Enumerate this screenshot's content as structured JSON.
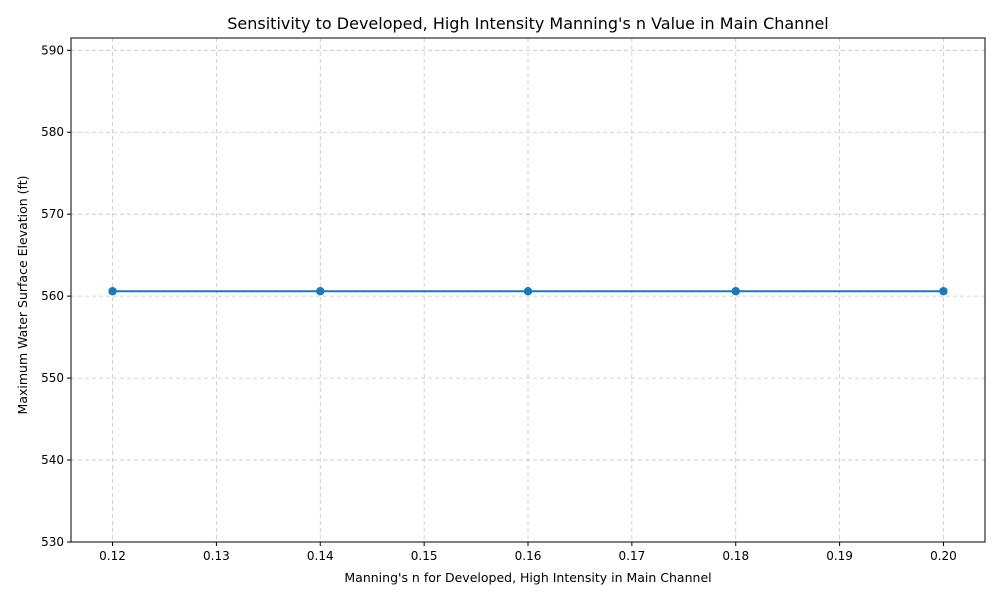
{
  "chart_data": {
    "type": "line",
    "title": "Sensitivity to Developed, High Intensity Manning's n Value in Main Channel",
    "xlabel": "Manning's n for Developed, High Intensity in Main Channel",
    "ylabel": "Maximum Water Surface Elevation (ft)",
    "x": [
      0.12,
      0.14,
      0.16,
      0.18,
      0.2
    ],
    "series": [
      {
        "values": [
          560.6,
          560.6,
          560.6,
          560.6,
          560.6
        ],
        "color": "#1f77b4"
      }
    ],
    "xlim": [
      0.116,
      0.204
    ],
    "ylim": [
      530,
      591.5
    ],
    "xticks": [
      0.12,
      0.13,
      0.14,
      0.15,
      0.16,
      0.17,
      0.18,
      0.19,
      0.2
    ],
    "xtick_labels": [
      "0.12",
      "0.13",
      "0.14",
      "0.15",
      "0.16",
      "0.17",
      "0.18",
      "0.19",
      "0.20"
    ],
    "yticks": [
      530,
      540,
      550,
      560,
      570,
      580,
      590
    ],
    "ytick_labels": [
      "530",
      "540",
      "550",
      "560",
      "570",
      "580",
      "590"
    ],
    "grid": true,
    "grid_style": "dashed",
    "markers": "circle"
  }
}
